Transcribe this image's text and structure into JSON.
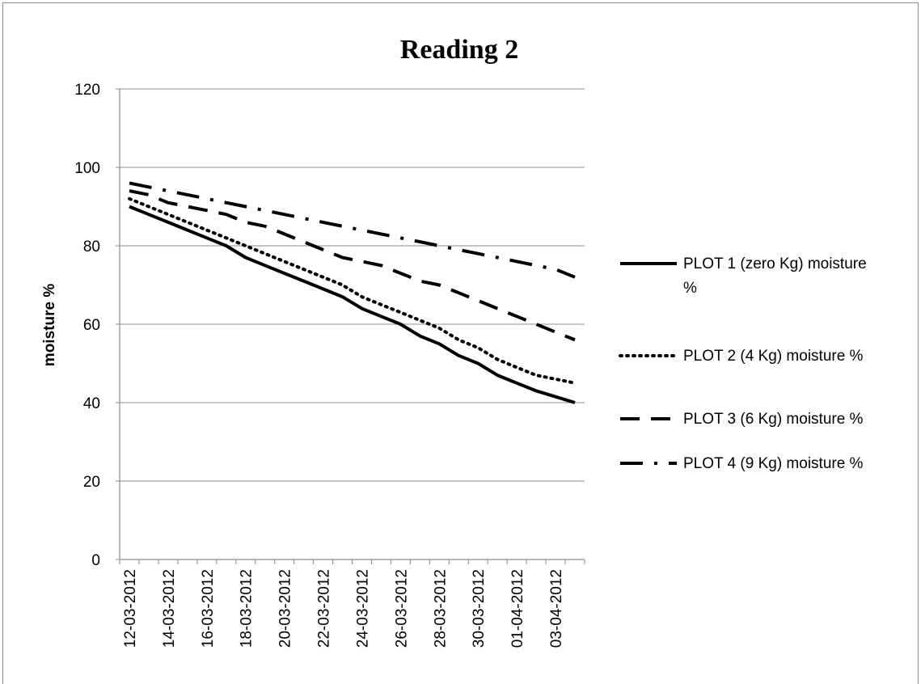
{
  "chart_data": {
    "type": "line",
    "title": "Reading 2",
    "xlabel": "",
    "ylabel": "moisture %",
    "ylim": [
      0,
      120
    ],
    "yticks": [
      0,
      20,
      40,
      60,
      80,
      100,
      120
    ],
    "x": [
      "12-03-2012",
      "13-03-2012",
      "14-03-2012",
      "15-03-2012",
      "16-03-2012",
      "17-03-2012",
      "18-03-2012",
      "19-03-2012",
      "20-03-2012",
      "21-03-2012",
      "22-03-2012",
      "23-03-2012",
      "24-03-2012",
      "25-03-2012",
      "26-03-2012",
      "27-03-2012",
      "28-03-2012",
      "29-03-2012",
      "30-03-2012",
      "31-03-2012",
      "01-04-2012",
      "02-04-2012",
      "03-04-2012",
      "04-04-2012"
    ],
    "xtick_labels": [
      "12-03-2012",
      "14-03-2012",
      "16-03-2012",
      "18-03-2012",
      "20-03-2012",
      "22-03-2012",
      "24-03-2012",
      "26-03-2012",
      "28-03-2012",
      "30-03-2012",
      "01-04-2012",
      "03-04-2012"
    ],
    "grid": true,
    "legend_position": "right",
    "series": [
      {
        "name": "PLOT 1 (zero Kg) moisture %",
        "style": "solid",
        "values": [
          90,
          88,
          86,
          84,
          82,
          80,
          77,
          75,
          73,
          71,
          69,
          67,
          64,
          62,
          60,
          57,
          55,
          52,
          50,
          47,
          45,
          43,
          41.5,
          40
        ]
      },
      {
        "name": "PLOT 2 (4 Kg) moisture %",
        "style": "dotted",
        "values": [
          92,
          90,
          88,
          86,
          84,
          82,
          80,
          78,
          76,
          74,
          72,
          70,
          67,
          65,
          63,
          61,
          59,
          56,
          54,
          51,
          49,
          47,
          46,
          45
        ]
      },
      {
        "name": "PLOT 3 (6 Kg) moisture %",
        "style": "dashed",
        "values": [
          94,
          93,
          91,
          90,
          89,
          88,
          86,
          85,
          83,
          81,
          79,
          77,
          76,
          75,
          73,
          71,
          70,
          68,
          66,
          64,
          62,
          60,
          58,
          56
        ]
      },
      {
        "name": "PLOT 4 (9 Kg) moisture %",
        "style": "dash-dot",
        "values": [
          96,
          95,
          94,
          93,
          92,
          91,
          90,
          89,
          88,
          87,
          86,
          85,
          84,
          83,
          82,
          81,
          80,
          79,
          78,
          77,
          76,
          75,
          74,
          72
        ]
      }
    ]
  }
}
